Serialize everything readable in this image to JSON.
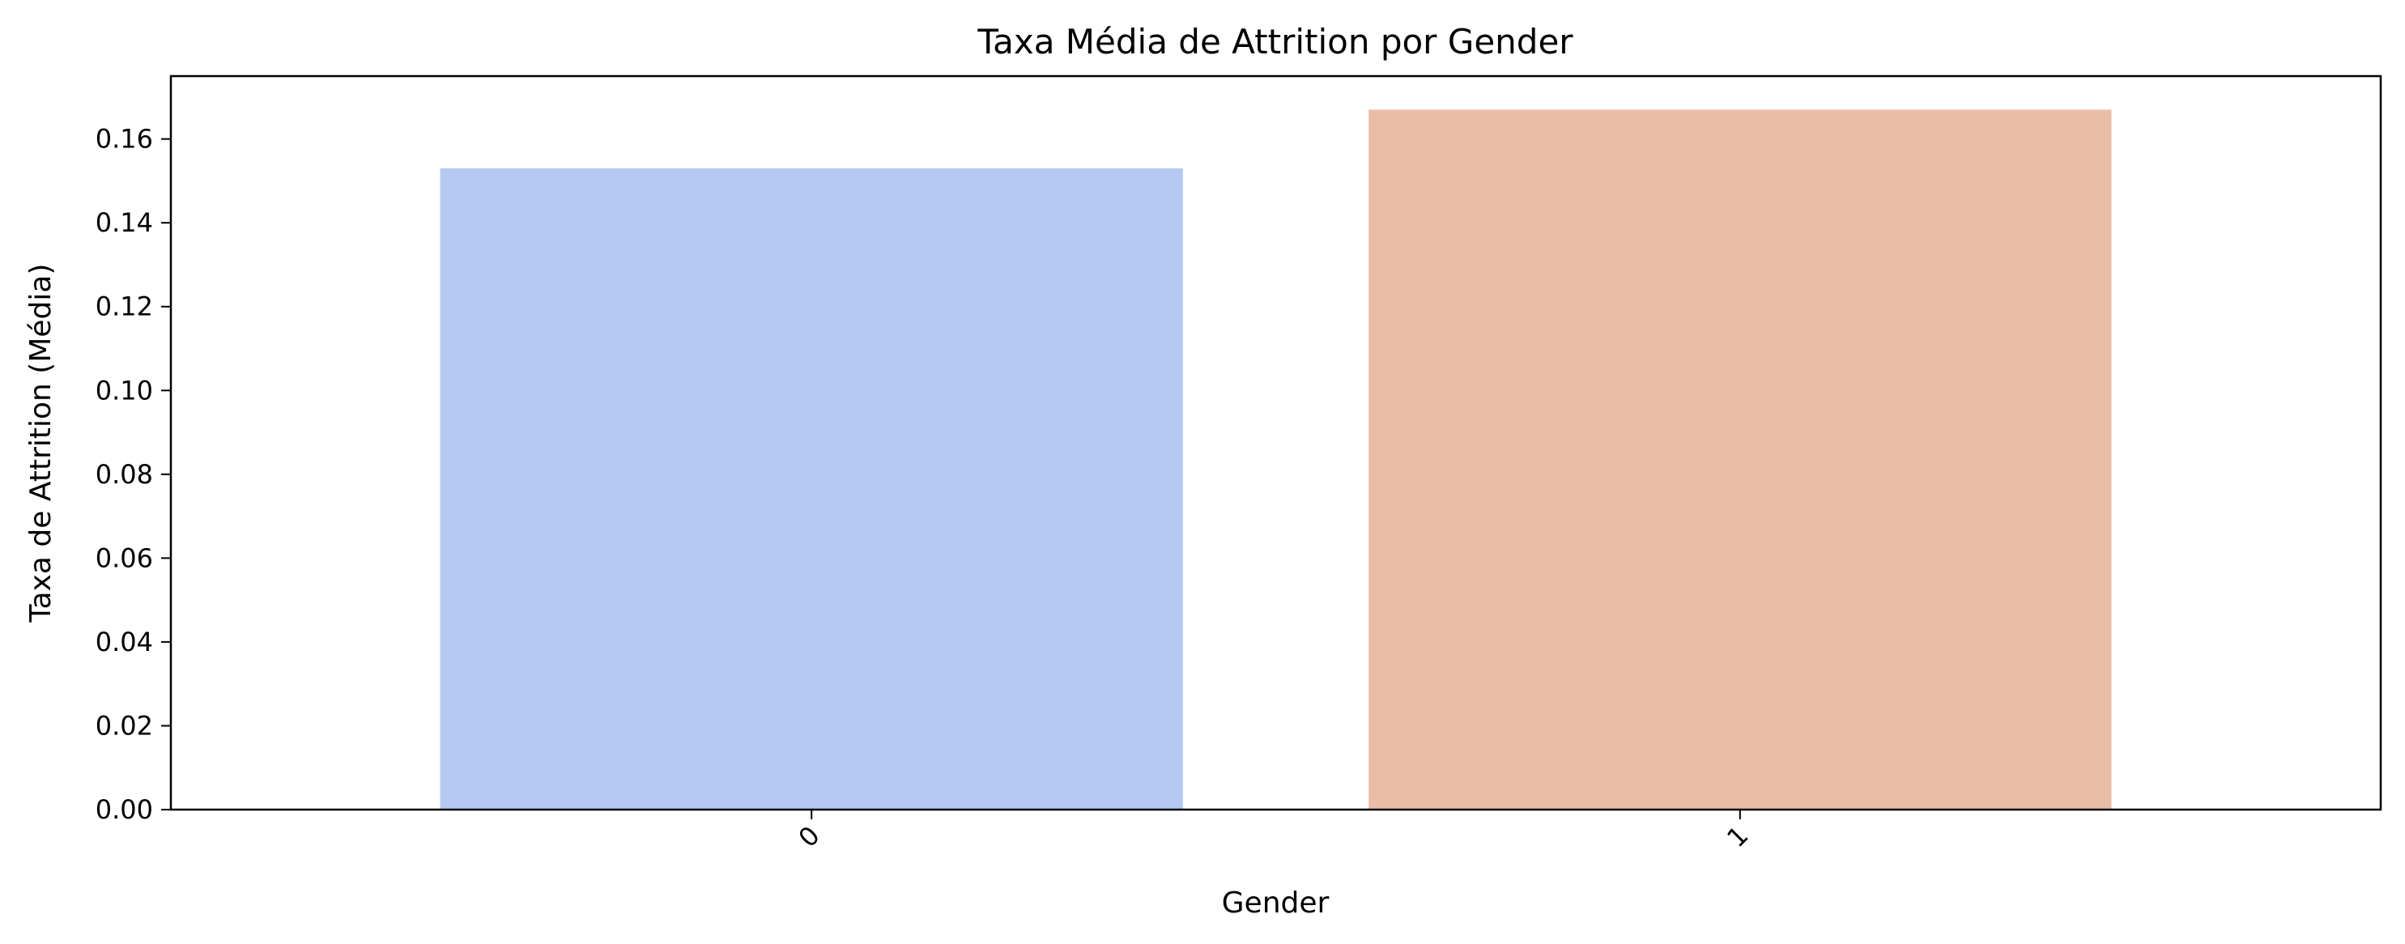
{
  "chart_data": {
    "type": "bar",
    "title": "Taxa Média de Attrition por Gender",
    "xlabel": "Gender",
    "ylabel": "Taxa de Attrition (Média)",
    "categories": [
      "0",
      "1"
    ],
    "values": [
      0.153,
      0.167
    ],
    "colors": [
      "#b5c9f2",
      "#ebbca6"
    ],
    "ylim": [
      0,
      0.175
    ],
    "yticks": [
      "0.00",
      "0.02",
      "0.04",
      "0.06",
      "0.08",
      "0.10",
      "0.12",
      "0.14",
      "0.16"
    ],
    "grid": false,
    "legend": "none"
  }
}
